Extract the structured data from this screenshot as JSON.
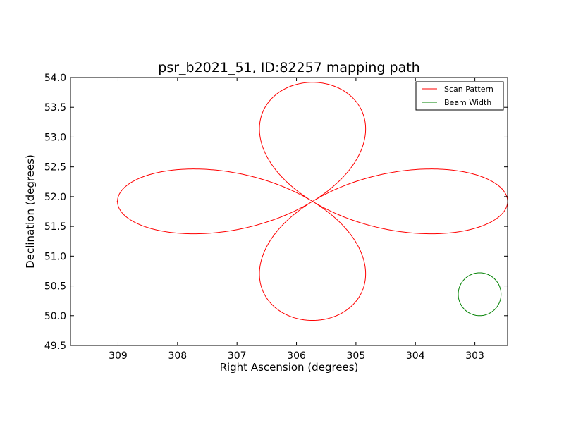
{
  "chart_data": {
    "type": "line",
    "title": "psr_b2021_51, ID:82257 mapping path",
    "xlabel": "Right Ascension (degrees)",
    "ylabel": "Declination (degrees)",
    "xlim": [
      309.8,
      302.45
    ],
    "ylim": [
      49.5,
      54.0
    ],
    "x_inverted": true,
    "x_ticks": [
      309,
      308,
      307,
      306,
      305,
      304,
      303
    ],
    "x_tick_labels": [
      "309",
      "308",
      "307",
      "306",
      "305",
      "304",
      "303"
    ],
    "y_ticks": [
      49.5,
      50.0,
      50.5,
      51.0,
      51.5,
      52.0,
      52.5,
      53.0,
      53.5,
      54.0
    ],
    "y_tick_labels": [
      "49.5",
      "50.0",
      "50.5",
      "51.0",
      "51.5",
      "52.0",
      "52.5",
      "53.0",
      "53.5",
      "54.0"
    ],
    "grid": false,
    "legend_position": "top-right",
    "series": [
      {
        "name": "Scan Pattern",
        "color": "#ff0000",
        "shape": "four-petal rose curve",
        "center": [
          305.73,
          51.92
        ],
        "petal_extent_x_degrees": 3.28,
        "petal_extent_y_degrees": 2.0,
        "start_point": [
          309.02,
          51.92
        ]
      },
      {
        "name": "Beam Width",
        "color": "#008000",
        "shape": "circle",
        "center": [
          302.92,
          50.36
        ],
        "radius_degrees": 0.36
      }
    ]
  }
}
